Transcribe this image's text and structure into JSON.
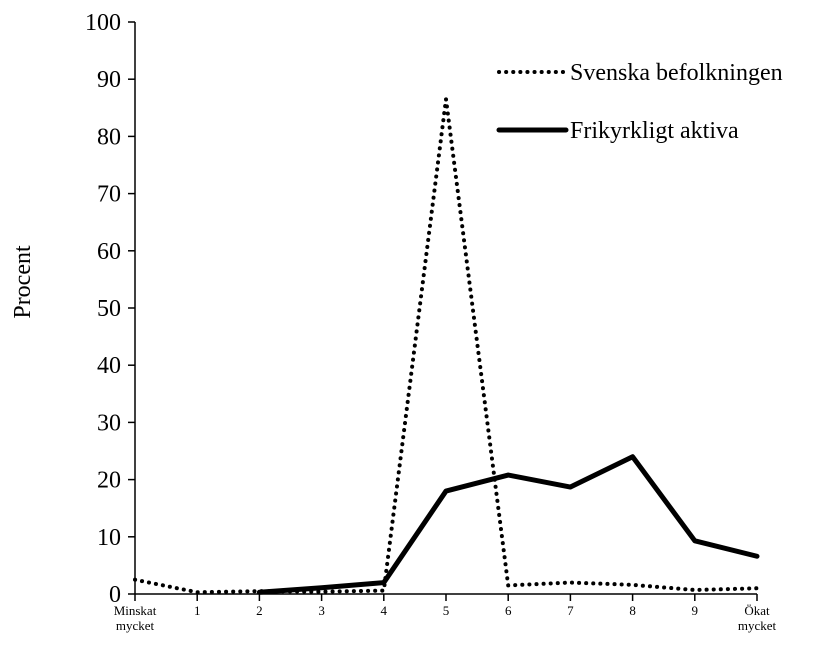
{
  "chart_data": {
    "type": "line",
    "title": "",
    "xlabel": "",
    "ylabel": "Procent",
    "ylim": [
      0,
      100
    ],
    "yticks": [
      "0",
      "10",
      "20",
      "30",
      "40",
      "50",
      "60",
      "70",
      "80",
      "90",
      "100"
    ],
    "categories": [
      "Minskat mycket",
      "1",
      "2",
      "3",
      "4",
      "5",
      "6",
      "7",
      "8",
      "9",
      "Ökat mycket"
    ],
    "grid": false,
    "legend_position": "top-right",
    "series": [
      {
        "name": "Svenska befolkningen",
        "style": "dotted",
        "color": "#000000",
        "values": [
          2.5,
          0.3,
          0.5,
          0.4,
          0.6,
          86.5,
          1.5,
          2.0,
          1.6,
          0.7,
          1.0
        ]
      },
      {
        "name": "Frikyrkligt aktiva",
        "style": "solid",
        "color": "#000000",
        "values": [
          null,
          null,
          0.3,
          1.1,
          2.0,
          18.0,
          20.8,
          18.7,
          24.0,
          9.3,
          6.6
        ]
      }
    ]
  }
}
